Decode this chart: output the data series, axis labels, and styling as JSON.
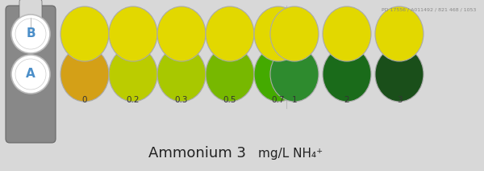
{
  "title": "Ammonium 3",
  "subtitle": "mg/L NH₄⁺",
  "labels": [
    "0",
    "0.2",
    "0.3",
    "0.5",
    "0.7",
    "1",
    "2",
    "3"
  ],
  "row_A_colors": [
    "#D4A017",
    "#BBCC00",
    "#A8C800",
    "#77B800",
    "#44AA00",
    "#2E8B2E",
    "#1A6B1A",
    "#1A4F1A"
  ],
  "row_B_colors": [
    "#E2D800",
    "#E2D800",
    "#E2D800",
    "#E2D800",
    "#E2D800",
    "#E2D800",
    "#E2D800",
    "#E2D800"
  ],
  "background_color": "#D8D8D8",
  "footer_text": "PD 17556 / A011492 / 821 468 / 1053",
  "circle_edge_color": "#AAAAAA",
  "device_color": "#888888",
  "device_edge_color": "#666666",
  "label_color": "#333333",
  "ab_text_color": "#4B8EC8"
}
